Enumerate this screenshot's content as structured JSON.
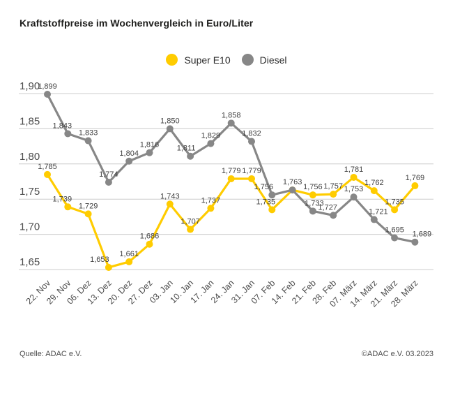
{
  "title": "Kraftstoffpreise im Wochenvergleich in Euro/Liter",
  "legend": {
    "position": "top-center",
    "items": [
      {
        "label": "Super E10",
        "color": "#FFCC00"
      },
      {
        "label": "Diesel",
        "color": "#878787"
      }
    ]
  },
  "footer": {
    "source": "Quelle: ADAC e.V.",
    "copyright": "©ADAC e.V. 03.2023"
  },
  "chart_data": {
    "type": "line",
    "title": "Kraftstoffpreise im Wochenvergleich in Euro/Liter",
    "xlabel": "",
    "ylabel": "",
    "categories": [
      "22. Nov",
      "29. Nov",
      "06. Dez",
      "13. Dez",
      "20. Dez",
      "27. Dez",
      "03. Jan",
      "10. Jan",
      "17. Jan",
      "24. Jan",
      "31. Jan",
      "07. Feb",
      "14. Feb",
      "21. Feb",
      "28. Feb",
      "07. März",
      "14. März",
      "21. März",
      "28. März"
    ],
    "series": [
      {
        "name": "Super E10",
        "color": "#FFCC00",
        "values": [
          1.785,
          1.739,
          1.729,
          1.653,
          1.661,
          1.686,
          1.743,
          1.707,
          1.737,
          1.779,
          1.779,
          1.735,
          1.763,
          1.756,
          1.757,
          1.781,
          1.762,
          1.735,
          1.769
        ]
      },
      {
        "name": "Diesel",
        "color": "#878787",
        "values": [
          1.899,
          1.843,
          1.833,
          1.774,
          1.804,
          1.816,
          1.85,
          1.811,
          1.829,
          1.858,
          1.832,
          1.756,
          1.763,
          1.733,
          1.727,
          1.753,
          1.721,
          1.695,
          1.689
        ]
      }
    ],
    "y_ticks": [
      {
        "label": "1,90",
        "value": 1.9
      },
      {
        "label": "1,85",
        "value": 1.85
      },
      {
        "label": "1,80",
        "value": 1.8
      },
      {
        "label": "1,75",
        "value": 1.75
      },
      {
        "label": "1,70",
        "value": 1.7
      },
      {
        "label": "1,65",
        "value": 1.65
      }
    ],
    "ylim": [
      1.62,
      1.92
    ],
    "grid": true,
    "point_labels": true,
    "decimal_separator": ",",
    "grid_color": "#cccccc",
    "label_color": "#3f3f3f",
    "axis_color": "#4c4c4c"
  }
}
